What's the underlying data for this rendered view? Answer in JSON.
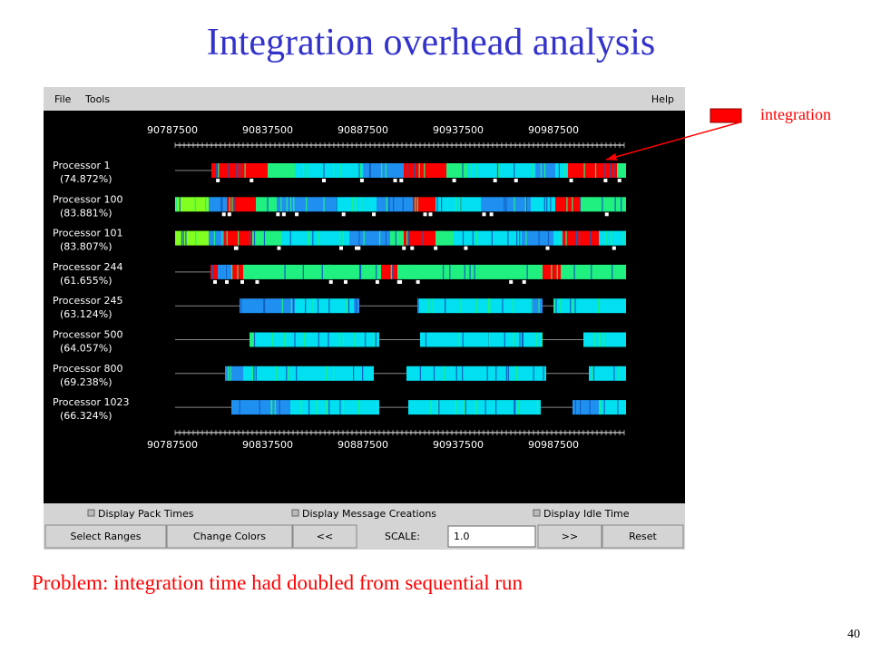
{
  "title": "Integration overhead analysis",
  "legend": {
    "label": "integration"
  },
  "window": {
    "menu": [
      "File",
      "Tools"
    ],
    "help": "Help",
    "axis_labels": [
      "90787500",
      "90837500",
      "90887500",
      "90937500",
      "90987500"
    ],
    "processors": [
      {
        "name": "Processor 1",
        "percent": "(74.872%)"
      },
      {
        "name": "Processor 100",
        "percent": "(83.881%)"
      },
      {
        "name": "Processor 101",
        "percent": "(83.807%)"
      },
      {
        "name": "Processor 244",
        "percent": "(61.655%)"
      },
      {
        "name": "Processor 245",
        "percent": "(63.124%)"
      },
      {
        "name": "Processor 500",
        "percent": "(64.057%)"
      },
      {
        "name": "Processor 800",
        "percent": "(69.238%)"
      },
      {
        "name": "Processor 1023",
        "percent": "(66.324%)"
      }
    ],
    "checkboxes": [
      "Display Pack Times",
      "Display Message Creations",
      "Display Idle Time"
    ],
    "buttons": [
      "Select Ranges",
      "Change Colors",
      "<<"
    ],
    "scale_label": "SCALE:",
    "scale_value": "1.0",
    "buttons_right": [
      ">>",
      "Reset"
    ]
  },
  "caption": "Problem: integration time had doubled from sequential run",
  "page_number": "40"
}
